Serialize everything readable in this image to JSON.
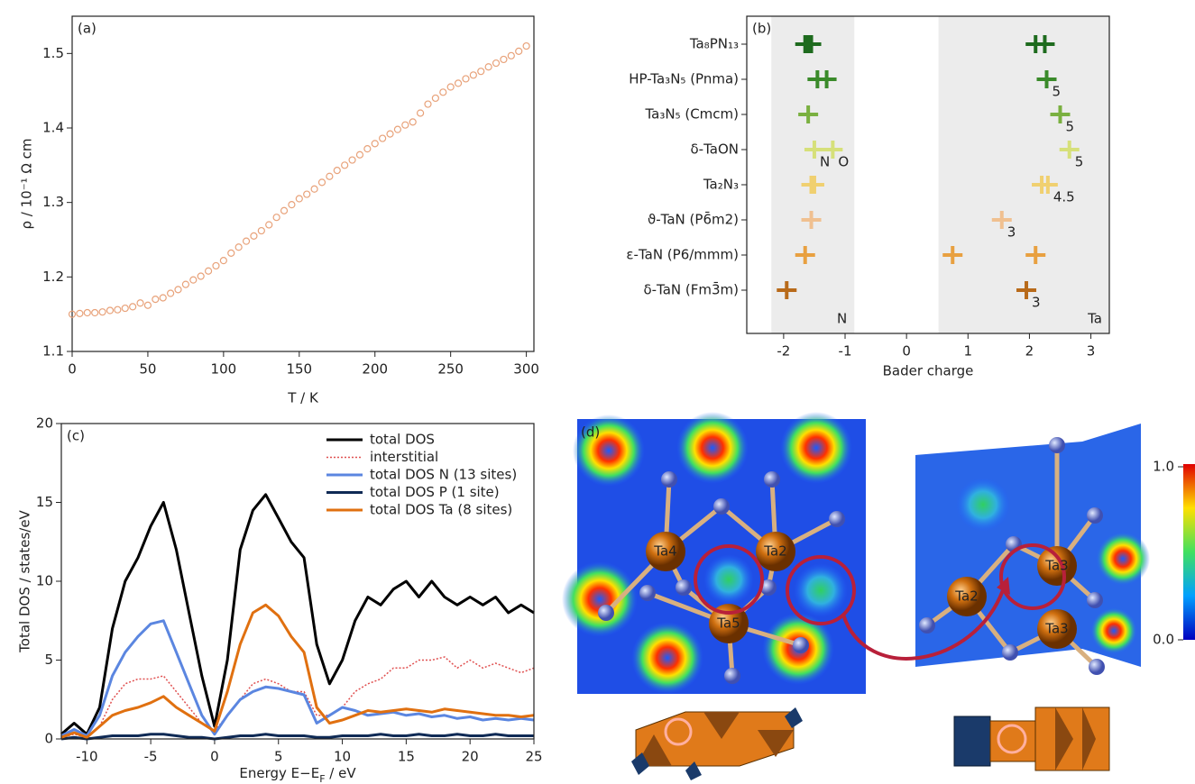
{
  "chart_data": [
    {
      "type": "scatter",
      "annotation": "(a)",
      "xlabel": "T / K",
      "ylabel": "ρ / 10⁻¹ Ω cm",
      "color": "#e8a27a",
      "x": [
        0,
        5,
        10,
        15,
        20,
        25,
        30,
        35,
        40,
        45,
        50,
        55,
        60,
        65,
        70,
        75,
        80,
        85,
        90,
        95,
        100,
        105,
        110,
        115,
        120,
        125,
        130,
        135,
        140,
        145,
        150,
        155,
        160,
        165,
        170,
        175,
        180,
        185,
        190,
        195,
        200,
        205,
        210,
        215,
        220,
        225,
        230,
        235,
        240,
        245,
        250,
        255,
        260,
        265,
        270,
        275,
        280,
        285,
        290,
        295,
        300
      ],
      "values": [
        1.15,
        1.151,
        1.152,
        1.152,
        1.153,
        1.155,
        1.156,
        1.158,
        1.16,
        1.165,
        1.162,
        1.17,
        1.172,
        1.178,
        1.183,
        1.19,
        1.196,
        1.201,
        1.208,
        1.215,
        1.222,
        1.232,
        1.24,
        1.248,
        1.255,
        1.262,
        1.27,
        1.28,
        1.289,
        1.297,
        1.305,
        1.311,
        1.318,
        1.327,
        1.335,
        1.343,
        1.35,
        1.357,
        1.364,
        1.372,
        1.379,
        1.386,
        1.392,
        1.398,
        1.404,
        1.408,
        1.42,
        1.432,
        1.44,
        1.448,
        1.455,
        1.46,
        1.466,
        1.471,
        1.476,
        1.482,
        1.487,
        1.492,
        1.497,
        1.503,
        1.51
      ],
      "xlim": [
        0,
        305
      ],
      "ylim": [
        1.1,
        1.55
      ],
      "xticks": [
        0,
        50,
        100,
        150,
        200,
        250,
        300
      ],
      "yticks": [
        1.1,
        1.2,
        1.3,
        1.4,
        1.5
      ]
    },
    {
      "type": "strip",
      "annotation": "(b)",
      "xlabel": "Bader charge",
      "categories": [
        "Ta₈PN₁₃",
        "HP-Ta₃N₅ (Pnma)",
        "Ta₃N₅ (Cmcm)",
        "δ-TaON",
        "Ta₂N₃",
        "ϑ-TaN (P6̄m2)",
        "ε-TaN (P6/mmm)",
        "δ-TaN (Fm3̄m)"
      ],
      "rows": [
        {
          "color": "#1e6b1e",
          "values": [
            -1.65,
            -1.6,
            -1.55,
            2.1,
            2.25
          ]
        },
        {
          "color": "#3a8a2a",
          "values": [
            -1.45,
            -1.3,
            2.28
          ],
          "point_labels": [
            null,
            null,
            "5"
          ]
        },
        {
          "color": "#7ab040",
          "values": [
            -1.6,
            2.5
          ],
          "point_labels": [
            null,
            "5"
          ]
        },
        {
          "color": "#d6e07a",
          "values": [
            -1.5,
            -1.2,
            2.65
          ],
          "point_labels": [
            "N",
            "O",
            "5"
          ]
        },
        {
          "color": "#f0d070",
          "values": [
            -1.55,
            -1.5,
            2.2,
            2.3
          ],
          "point_labels": [
            null,
            null,
            null,
            "4.5"
          ]
        },
        {
          "color": "#f0c090",
          "values": [
            -1.55,
            1.55
          ],
          "point_labels": [
            null,
            "3"
          ]
        },
        {
          "color": "#e8a040",
          "values": [
            -1.65,
            0.75,
            2.1
          ]
        },
        {
          "color": "#b86a1a",
          "values": [
            -1.95,
            1.95
          ],
          "point_labels": [
            null,
            "3"
          ]
        }
      ],
      "shaded_regions": [
        {
          "label": "N",
          "range": [
            -2.2,
            -0.85
          ]
        },
        {
          "label": "Ta",
          "range": [
            0.52,
            3.3
          ]
        }
      ],
      "xlim": [
        -2.6,
        3.3
      ],
      "xticks": [
        -2,
        -1,
        0,
        1,
        2,
        3
      ]
    },
    {
      "type": "line",
      "annotation": "(c)",
      "xlabel": "Energy E−E_{F} / eV",
      "ylabel": "Total DOS / states/eV",
      "x": [
        -12,
        -11,
        -10,
        -9,
        -8,
        -7,
        -6,
        -5,
        -4,
        -3,
        -2,
        -1,
        0,
        1,
        2,
        3,
        4,
        5,
        6,
        7,
        8,
        9,
        10,
        11,
        12,
        13,
        14,
        15,
        16,
        17,
        18,
        19,
        20,
        21,
        22,
        23,
        24,
        25
      ],
      "series": [
        {
          "name": "total DOS",
          "color": "#000000",
          "values": [
            0.3,
            1.0,
            0.3,
            2,
            7,
            10,
            11.5,
            13.5,
            15,
            12,
            8,
            4,
            0.8,
            5,
            12,
            14.5,
            15.5,
            14,
            12.5,
            11.5,
            6,
            3.5,
            5,
            7.5,
            9,
            8.5,
            9.5,
            10,
            9,
            10,
            9,
            8.5,
            9,
            8.5,
            9,
            8,
            8.5,
            8
          ]
        },
        {
          "name": "interstitial",
          "color": "#e05050",
          "dashed": true,
          "values": [
            0.1,
            0.3,
            0.1,
            0.8,
            2.5,
            3.5,
            3.8,
            3.8,
            4,
            3,
            2,
            1,
            0.5,
            1.5,
            2.5,
            3.5,
            3.8,
            3.5,
            3,
            3,
            1.5,
            1.5,
            2,
            3,
            3.5,
            3.8,
            4.5,
            4.5,
            5,
            5,
            5.2,
            4.5,
            5,
            4.5,
            4.8,
            4.5,
            4.2,
            4.5
          ]
        },
        {
          "name": "total DOS N (13 sites)",
          "color": "#5b86e0",
          "values": [
            0.2,
            0.6,
            0.2,
            1.5,
            4,
            5.5,
            6.5,
            7.3,
            7.5,
            5.5,
            3.5,
            1.5,
            0.3,
            1.5,
            2.5,
            3,
            3.3,
            3.2,
            3,
            2.8,
            1,
            1.5,
            2,
            1.8,
            1.5,
            1.6,
            1.7,
            1.5,
            1.6,
            1.4,
            1.5,
            1.3,
            1.4,
            1.2,
            1.3,
            1.2,
            1.3,
            1.2
          ]
        },
        {
          "name": "total DOS P (1 site)",
          "color": "#0f2a55",
          "values": [
            0,
            0.1,
            0,
            0.1,
            0.2,
            0.2,
            0.2,
            0.3,
            0.3,
            0.2,
            0.1,
            0.1,
            0,
            0.1,
            0.2,
            0.2,
            0.3,
            0.2,
            0.2,
            0.2,
            0.1,
            0.1,
            0.2,
            0.2,
            0.2,
            0.3,
            0.2,
            0.2,
            0.3,
            0.2,
            0.2,
            0.3,
            0.2,
            0.2,
            0.3,
            0.2,
            0.2,
            0.2
          ]
        },
        {
          "name": "total DOS  Ta (8 sites)",
          "color": "#e07010",
          "values": [
            0.1,
            0.4,
            0.1,
            0.8,
            1.5,
            1.8,
            2,
            2.3,
            2.7,
            2,
            1.5,
            1,
            0.5,
            3,
            6,
            8,
            8.5,
            7.8,
            6.5,
            5.5,
            2,
            1,
            1.2,
            1.5,
            1.8,
            1.7,
            1.8,
            1.9,
            1.8,
            1.7,
            1.9,
            1.8,
            1.7,
            1.6,
            1.5,
            1.5,
            1.4,
            1.5
          ]
        }
      ],
      "xlim": [
        -12,
        25
      ],
      "ylim": [
        0,
        20
      ],
      "xticks": [
        -10,
        -5,
        0,
        5,
        10,
        15,
        20,
        25
      ],
      "yticks": [
        0,
        5,
        10,
        15,
        20
      ]
    }
  ],
  "panel_d": {
    "label": "(d)",
    "left_atoms": [
      "Ta4",
      "Ta2",
      "Ta5"
    ],
    "right_atoms": [
      "Ta3",
      "Ta2",
      "Ta3"
    ],
    "colorbar_ticks": [
      {
        "value": 1,
        "label": "1.0"
      },
      {
        "value": 0,
        "label": "0.0"
      }
    ]
  }
}
